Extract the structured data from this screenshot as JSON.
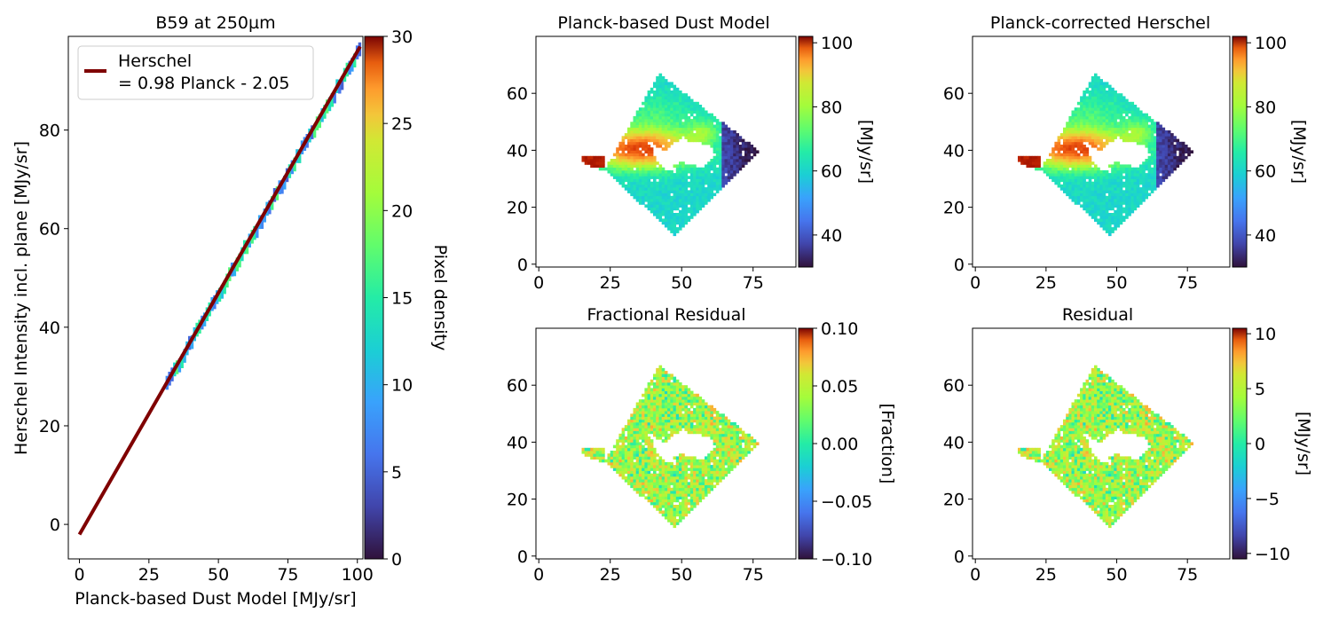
{
  "chart_data": [
    {
      "type": "heatmap",
      "title": "B59 at 250µm",
      "xlabel": "Planck-based Dust Model [MJy/sr]",
      "ylabel": "Herschel Intensity incl. plane [MJy/sr]",
      "xlim": [
        -4,
        102
      ],
      "ylim": [
        -7,
        99
      ],
      "xticks": [
        0,
        25,
        50,
        75,
        100
      ],
      "yticks": [
        0,
        20,
        40,
        60,
        80
      ],
      "colorbar": {
        "label": "Pixel density",
        "range": [
          0,
          30
        ],
        "ticks": [
          0,
          5,
          10,
          15,
          20,
          25,
          30
        ],
        "colormap": "turbo"
      },
      "fit": {
        "slope": 0.98,
        "intercept": -2.05,
        "x_range": [
          0,
          101
        ],
        "color": "#7f0000"
      },
      "density_band": {
        "x_range": [
          31,
          101
        ],
        "halfwidth": 1.4
      },
      "legend": {
        "line1": "Herschel",
        "line2": "= 0.98 Planck - 2.05",
        "placement": "upper-left"
      }
    },
    {
      "type": "heatmap",
      "title": "Planck-based Dust Model",
      "xlim": [
        -1,
        90
      ],
      "ylim": [
        -1,
        80
      ],
      "xticks": [
        0,
        25,
        50,
        75
      ],
      "yticks": [
        0,
        20,
        40,
        60
      ],
      "colorbar": {
        "label": "[MJy/sr]",
        "range": [
          30,
          102
        ],
        "ticks": [
          40,
          60,
          80,
          100
        ],
        "colormap": "turbo"
      },
      "map": "intensity"
    },
    {
      "type": "heatmap",
      "title": "Planck-corrected Herschel",
      "xlim": [
        -1,
        90
      ],
      "ylim": [
        -1,
        80
      ],
      "xticks": [
        0,
        25,
        50,
        75
      ],
      "yticks": [
        0,
        20,
        40,
        60
      ],
      "colorbar": {
        "label": "[MJy/sr]",
        "range": [
          30,
          102
        ],
        "ticks": [
          40,
          60,
          80,
          100
        ],
        "colormap": "turbo"
      },
      "map": "intensity"
    },
    {
      "type": "heatmap",
      "title": "Fractional Residual",
      "xlim": [
        -1,
        90
      ],
      "ylim": [
        -1,
        80
      ],
      "xticks": [
        0,
        25,
        50,
        75
      ],
      "yticks": [
        0,
        20,
        40,
        60
      ],
      "colorbar": {
        "label": "[Fraction]",
        "range": [
          -0.1,
          0.1
        ],
        "ticks": [
          -0.1,
          -0.05,
          0.0,
          0.05,
          0.1
        ],
        "tick_labels": [
          "−0.10",
          "−0.05",
          "0.00",
          "0.05",
          "0.10"
        ],
        "colormap": "turbo"
      },
      "map": "residual"
    },
    {
      "type": "heatmap",
      "title": "Residual",
      "xlim": [
        -1,
        90
      ],
      "ylim": [
        -1,
        80
      ],
      "xticks": [
        0,
        25,
        50,
        75
      ],
      "yticks": [
        0,
        20,
        40,
        60
      ],
      "colorbar": {
        "label": "[MJy/sr]",
        "range": [
          -10.5,
          10.5
        ],
        "ticks": [
          -10,
          -5,
          0,
          5,
          10
        ],
        "tick_labels": [
          "−10",
          "−5",
          "0",
          "5",
          "10"
        ],
        "colormap": "turbo"
      },
      "map": "residual"
    }
  ],
  "footprint": {
    "diamond": {
      "top": [
        42,
        67
      ],
      "right": [
        77,
        40
      ],
      "bottom": [
        48,
        10
      ],
      "left": [
        23,
        33
      ]
    },
    "tail": [
      [
        15,
        38
      ],
      [
        23,
        38
      ],
      [
        23,
        33
      ],
      [
        16,
        35
      ]
    ],
    "hole": [
      [
        39,
        43
      ],
      [
        44,
        40
      ],
      [
        50,
        44
      ],
      [
        60,
        42
      ],
      [
        62,
        38
      ],
      [
        57,
        34
      ],
      [
        50,
        36
      ],
      [
        45,
        33
      ],
      [
        41,
        37
      ]
    ]
  }
}
